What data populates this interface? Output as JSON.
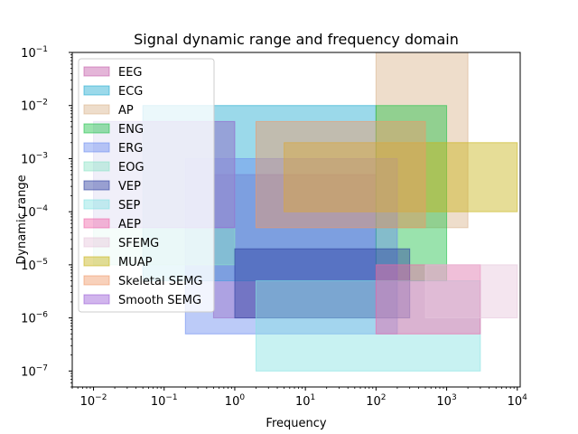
{
  "chart_data": {
    "type": "area",
    "title": "Signal dynamic range and frequency domain",
    "xlabel": "Frequency",
    "ylabel": "Dynamic range",
    "xscale": "log",
    "yscale": "log",
    "xlim": [
      0.005,
      11000
    ],
    "ylim": [
      5e-08,
      0.1
    ],
    "x_ticks": [
      {
        "value": 0.01,
        "base": "10",
        "exp": "−2"
      },
      {
        "value": 0.1,
        "base": "10",
        "exp": "−1"
      },
      {
        "value": 1,
        "base": "10",
        "exp": "0"
      },
      {
        "value": 10,
        "base": "10",
        "exp": "1"
      },
      {
        "value": 100,
        "base": "10",
        "exp": "2"
      },
      {
        "value": 1000,
        "base": "10",
        "exp": "3"
      },
      {
        "value": 10000,
        "base": "10",
        "exp": "4"
      }
    ],
    "y_ticks": [
      {
        "value": 1e-07,
        "base": "10",
        "exp": "−7"
      },
      {
        "value": 1e-06,
        "base": "10",
        "exp": "−6"
      },
      {
        "value": 1e-05,
        "base": "10",
        "exp": "−5"
      },
      {
        "value": 0.0001,
        "base": "10",
        "exp": "−4"
      },
      {
        "value": 0.001,
        "base": "10",
        "exp": "−3"
      },
      {
        "value": 0.01,
        "base": "10",
        "exp": "−2"
      },
      {
        "value": 0.1,
        "base": "10",
        "exp": "−1"
      }
    ],
    "legend_position": "upper-left",
    "grid": false,
    "series": [
      {
        "name": "EEG",
        "color": "#c45ca8",
        "x": [
          0.5,
          100
        ],
        "y": [
          1e-06,
          0.0005
        ]
      },
      {
        "name": "ECG",
        "color": "#22aad1",
        "x": [
          0.05,
          100
        ],
        "y": [
          5e-06,
          0.01
        ]
      },
      {
        "name": "AP",
        "color": "#d9b38c",
        "x": [
          100,
          2000
        ],
        "y": [
          5e-05,
          0.1
        ]
      },
      {
        "name": "ENG",
        "color": "#1ec24a",
        "x": [
          100,
          1000
        ],
        "y": [
          5e-06,
          0.01
        ]
      },
      {
        "name": "ERG",
        "color": "#6a8cf0",
        "x": [
          0.2,
          200
        ],
        "y": [
          5e-07,
          0.001
        ]
      },
      {
        "name": "EOG",
        "color": "#8ce3c6",
        "x": [
          0.01,
          1
        ],
        "y": [
          1e-05,
          0.005
        ]
      },
      {
        "name": "VEP",
        "color": "#2c3fa0",
        "x": [
          1,
          300
        ],
        "y": [
          1e-06,
          2e-05
        ]
      },
      {
        "name": "SEP",
        "color": "#86e3e3",
        "x": [
          2,
          3000
        ],
        "y": [
          1e-07,
          5e-06
        ]
      },
      {
        "name": "AEP",
        "color": "#f066a8",
        "x": [
          100,
          3000
        ],
        "y": [
          5e-07,
          1e-05
        ]
      },
      {
        "name": "SFEMG",
        "color": "#e6c6dc",
        "x": [
          500,
          10000
        ],
        "y": [
          1e-06,
          1e-05
        ]
      },
      {
        "name": "MUAP",
        "color": "#c8b418",
        "x": [
          5,
          10000
        ],
        "y": [
          0.0001,
          0.002
        ]
      },
      {
        "name": "Skeletal SEMG",
        "color": "#f09868",
        "x": [
          2,
          500
        ],
        "y": [
          5e-05,
          0.005
        ]
      },
      {
        "name": "Smooth SEMG",
        "color": "#9a5ad6",
        "x": [
          0.01,
          1
        ],
        "y": [
          5e-05,
          0.005
        ]
      }
    ]
  }
}
